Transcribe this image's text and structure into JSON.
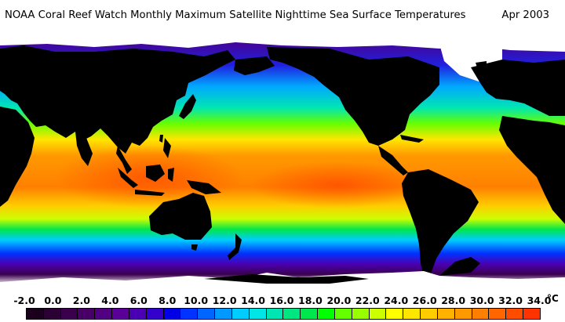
{
  "header": {
    "title": "NOAA Coral Reef Watch Monthly Maximum Satellite Nighttime Sea Surface Temperatures",
    "date": "Apr 2003"
  },
  "legend": {
    "labels": [
      "-2.0",
      "0.0",
      "2.0",
      "4.0",
      "6.0",
      "8.0",
      "10.0",
      "12.0",
      "14.0",
      "16.0",
      "18.0",
      "20.0",
      "22.0",
      "24.0",
      "26.0",
      "28.0",
      "30.0",
      "32.0",
      "34.0"
    ],
    "unit": "°C",
    "colors": [
      "#1a001a",
      "#2b0033",
      "#3a004d",
      "#460066",
      "#500080",
      "#5a0099",
      "#4b00b3",
      "#3300cc",
      "#0000e6",
      "#0033ff",
      "#0066ff",
      "#0099ff",
      "#00ccff",
      "#00e6e6",
      "#00e6b3",
      "#00e680",
      "#00e64d",
      "#00ff00",
      "#66ff00",
      "#99ff00",
      "#ccff00",
      "#ffff00",
      "#ffe600",
      "#ffcc00",
      "#ffb300",
      "#ff9900",
      "#ff8000",
      "#ff6600",
      "#ff4d00",
      "#ff3300"
    ]
  },
  "map": {
    "land_color": "#000000",
    "ice_color": "#ffffff",
    "palette_ramp": [
      "#1a001a",
      "#3c0050",
      "#5a0099",
      "#0000e6",
      "#0066ff",
      "#00ccff",
      "#00e6b3",
      "#00e64d",
      "#66ff00",
      "#ccff00",
      "#ffff00",
      "#ffcc00",
      "#ff9900",
      "#ff6600",
      "#ff3300"
    ]
  }
}
